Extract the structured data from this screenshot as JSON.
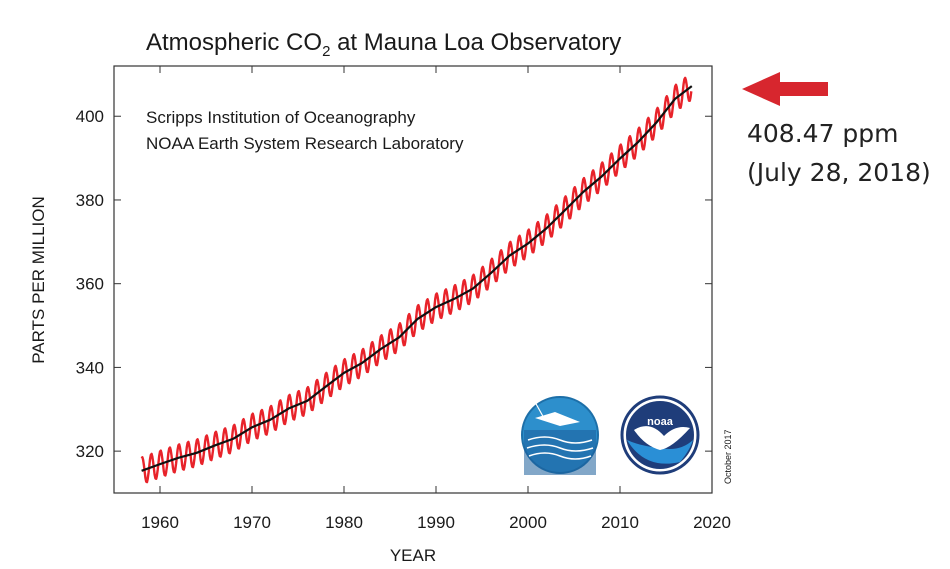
{
  "chart_data": {
    "type": "line",
    "title": {
      "main": "Atmospheric CO",
      "sub": "2",
      "rest": " at Mauna Loa Observatory"
    },
    "xlabel": "YEAR",
    "ylabel": "PARTS PER MILLION",
    "xlim": [
      1955,
      2020
    ],
    "ylim": [
      310,
      412
    ],
    "x_ticks": [
      1960,
      1970,
      1980,
      1990,
      2000,
      2010,
      2020
    ],
    "y_ticks": [
      320,
      340,
      360,
      380,
      400
    ],
    "grid": false,
    "credits": [
      "Scripps Institution of Oceanography",
      "NOAA Earth System Research Laboratory"
    ],
    "side_note": "October 2017",
    "series": [
      {
        "kind": "monthly",
        "color": "#e8232a",
        "seasonal_amplitude_ppm": 3.2,
        "x": [
          1958,
          1960,
          1962,
          1964,
          1966,
          1968,
          1970,
          1972,
          1974,
          1976,
          1978,
          1980,
          1982,
          1984,
          1986,
          1988,
          1990,
          1992,
          1994,
          1996,
          1998,
          2000,
          2002,
          2004,
          2006,
          2008,
          2010,
          2012,
          2014,
          2016,
          2017.8
        ],
        "y": [
          315.3,
          316.9,
          318.4,
          319.6,
          321.4,
          323.0,
          325.7,
          327.5,
          330.2,
          332.0,
          335.4,
          338.7,
          341.1,
          344.4,
          347.2,
          351.6,
          354.4,
          356.4,
          358.8,
          362.6,
          366.7,
          369.6,
          373.2,
          377.5,
          381.9,
          385.6,
          389.9,
          393.9,
          398.6,
          404.2,
          407.2
        ]
      },
      {
        "kind": "trend",
        "color": "#111111",
        "x": [
          1958,
          1960,
          1962,
          1964,
          1966,
          1968,
          1970,
          1972,
          1974,
          1976,
          1978,
          1980,
          1982,
          1984,
          1986,
          1988,
          1990,
          1992,
          1994,
          1996,
          1998,
          2000,
          2002,
          2004,
          2006,
          2008,
          2010,
          2012,
          2014,
          2016,
          2017.8
        ],
        "y": [
          315.3,
          316.9,
          318.4,
          319.6,
          321.4,
          323.0,
          325.7,
          327.5,
          330.2,
          332.0,
          335.4,
          338.7,
          341.1,
          344.4,
          347.2,
          351.6,
          354.4,
          356.4,
          358.8,
          362.6,
          366.7,
          369.6,
          373.2,
          377.5,
          381.9,
          385.6,
          389.9,
          393.9,
          398.6,
          404.2,
          407.2
        ]
      }
    ]
  },
  "annotation": {
    "value": "408.47 ppm",
    "date": "(July 28, 2018)",
    "arrow_color": "#d7262e"
  },
  "logos": [
    {
      "name": "scripps-logo"
    },
    {
      "name": "noaa-logo",
      "text": "noaa"
    }
  ]
}
